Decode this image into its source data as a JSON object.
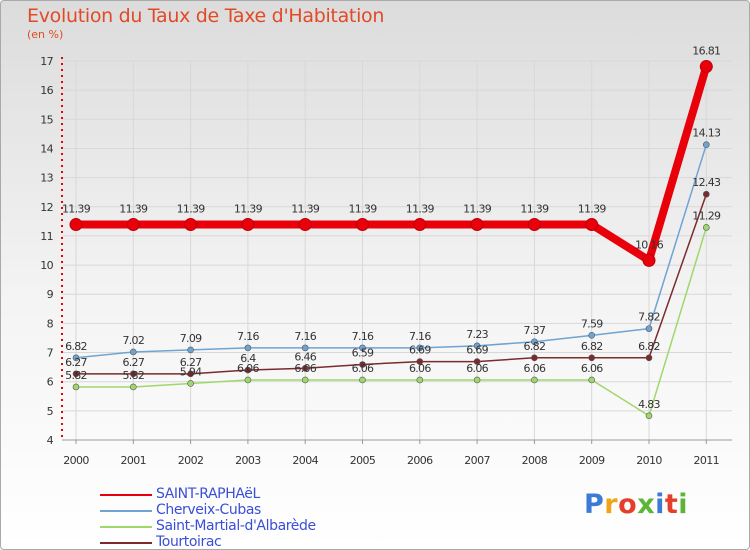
{
  "title": "Evolution du Taux de Taxe d'Habitation",
  "subtitle": "(en %)",
  "logo": {
    "text": "Proxiti",
    "colors": [
      "#3b7bd6",
      "#f0a41c",
      "#e53e2a",
      "#5cb534",
      "#3b7bd6",
      "#e53e2a",
      "#5cb534"
    ]
  },
  "chart_data": {
    "type": "line",
    "title": "Evolution du Taux de Taxe d'Habitation",
    "ylabel": "(en %)",
    "xlabel": "",
    "categories": [
      "2000",
      "2001",
      "2002",
      "2003",
      "2004",
      "2005",
      "2006",
      "2007",
      "2008",
      "2009",
      "2010",
      "2011"
    ],
    "ylim": [
      4,
      17
    ],
    "yticks": [
      "4",
      "5",
      "6",
      "7",
      "8",
      "9",
      "10",
      "11",
      "12",
      "13",
      "14",
      "15",
      "16",
      "17"
    ],
    "grid": true,
    "legend_position": "bottom-left",
    "series": [
      {
        "name": "SAINT-RAPHAëL",
        "color": "#e8000b",
        "thick": true,
        "values": [
          11.39,
          11.39,
          11.39,
          11.39,
          11.39,
          11.39,
          11.39,
          11.39,
          11.39,
          11.39,
          10.16,
          16.81
        ],
        "labels": [
          "11.39",
          "11.39",
          "11.39",
          "11.39",
          "11.39",
          "11.39",
          "11.39",
          "11.39",
          "11.39",
          "11.39",
          "10.16",
          "16.81"
        ]
      },
      {
        "name": "Cherveix-Cubas",
        "color": "#6fa3d2",
        "thick": false,
        "values": [
          6.82,
          7.02,
          7.09,
          7.16,
          7.16,
          7.16,
          7.16,
          7.23,
          7.37,
          7.59,
          7.82,
          14.13
        ],
        "labels": [
          "6.82",
          "7.02",
          "7.09",
          "7.16",
          "7.16",
          "7.16",
          "7.16",
          "7.23",
          "7.37",
          "7.59",
          "7.82",
          "14.13"
        ]
      },
      {
        "name": "Saint-Martial-d'Albarède",
        "color": "#9ed86a",
        "thick": false,
        "values": [
          5.82,
          5.82,
          5.94,
          6.06,
          6.06,
          6.06,
          6.06,
          6.06,
          6.06,
          6.06,
          4.83,
          11.29
        ],
        "labels": [
          "5.82",
          "5.82",
          "5.94",
          "6.06",
          "6.06",
          "6.06",
          "6.06",
          "6.06",
          "6.06",
          "6.06",
          "4.83",
          "11.29"
        ]
      },
      {
        "name": "Tourtoirac",
        "color": "#7b2b2e",
        "thick": false,
        "values": [
          6.27,
          6.27,
          6.27,
          6.4,
          6.46,
          6.59,
          6.69,
          6.69,
          6.82,
          6.82,
          6.82,
          12.43
        ],
        "labels": [
          "6.27",
          "6.27",
          "6.27",
          "6.4",
          "6.46",
          "6.59",
          "6.69",
          "6.69",
          "6.82",
          "6.82",
          "6.82",
          "12.43"
        ]
      }
    ]
  }
}
